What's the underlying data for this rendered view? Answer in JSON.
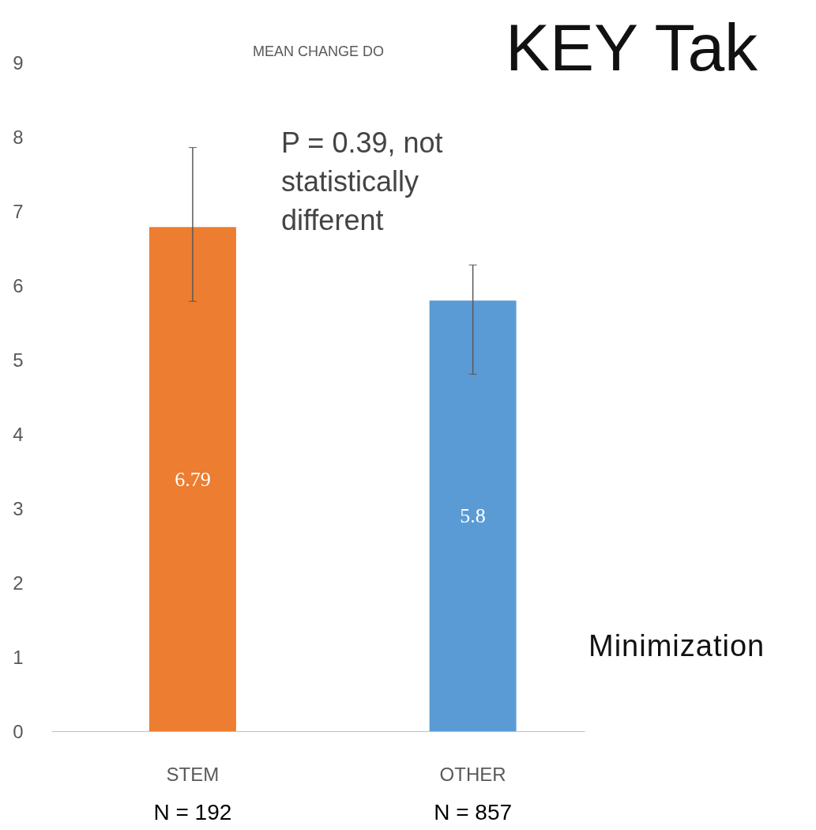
{
  "chart_data": {
    "type": "bar",
    "title": "MEAN CHANGE DO",
    "categories": [
      "STEM",
      "OTHER"
    ],
    "values": [
      6.79,
      5.8
    ],
    "colors": [
      "#ed7d31",
      "#5b9bd5"
    ],
    "errors": [
      [
        5.79,
        7.86
      ],
      [
        4.81,
        6.28
      ]
    ],
    "data_labels": true,
    "ylim": [
      0,
      9
    ],
    "yticks": [
      0,
      1,
      2,
      3,
      4,
      5,
      6,
      7,
      8,
      9
    ],
    "grid": false,
    "annotations": [
      "P = 0.39, not\nstatistically\ndifferent",
      "N = 192",
      "N = 857",
      "KEY Tak",
      "Minimization"
    ]
  }
}
